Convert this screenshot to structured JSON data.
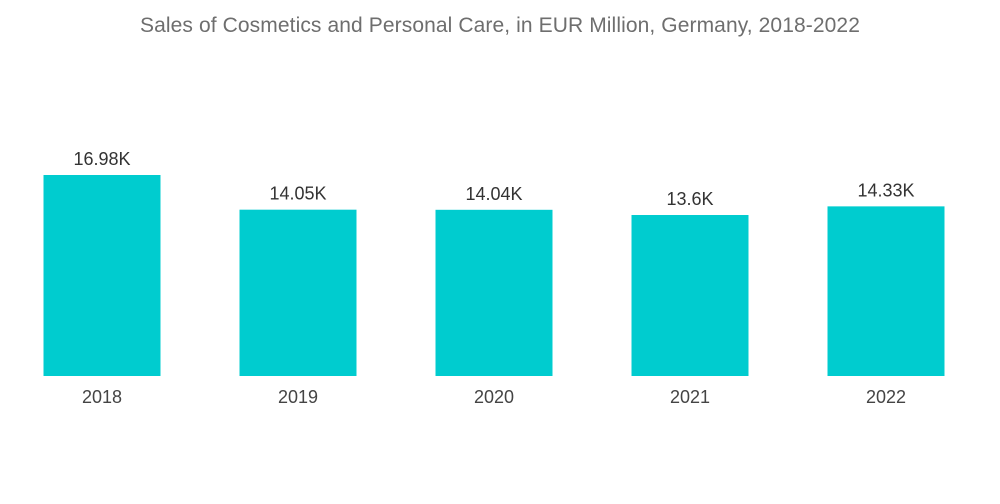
{
  "chart_data": {
    "type": "bar",
    "title": "Sales of Cosmetics and Personal Care, in EUR Million, Germany, 2018-2022",
    "xlabel": "",
    "ylabel": "",
    "categories": [
      "2018",
      "2019",
      "2020",
      "2021",
      "2022"
    ],
    "values": [
      16980,
      14050,
      14040,
      13600,
      14330
    ],
    "data_labels": [
      "16.98K",
      "14.05K",
      "14.04K",
      "13.6K",
      "14.33K"
    ],
    "ylim": [
      0,
      16980
    ],
    "grid": false,
    "legend": "none",
    "bar_color": "#00cccf"
  }
}
